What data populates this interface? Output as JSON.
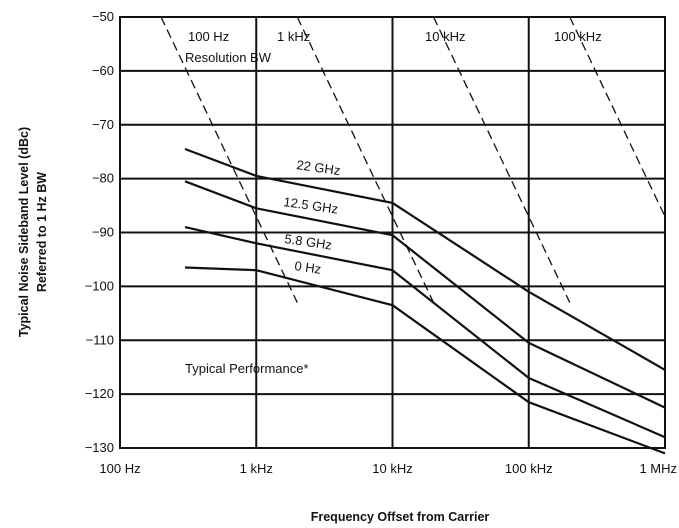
{
  "chart_data": {
    "type": "line",
    "title": "",
    "xlabel": "Frequency Offset from Carrier",
    "ylabel_line1": "Typical Noise Sideband Level (dBc)",
    "ylabel_line2": "Referred to 1 Hz BW",
    "x_scale": "log",
    "xlim": [
      100,
      1000000
    ],
    "ylim": [
      -130,
      -50
    ],
    "x_ticks": [
      {
        "value": 100,
        "label": "100 Hz"
      },
      {
        "value": 1000,
        "label": "1 kHz"
      },
      {
        "value": 10000,
        "label": "10 kHz"
      },
      {
        "value": 100000,
        "label": "100 kHz"
      },
      {
        "value": 1000000,
        "label": "1 MHz"
      }
    ],
    "y_ticks": [
      {
        "value": -50,
        "label": "−50"
      },
      {
        "value": -60,
        "label": "−60"
      },
      {
        "value": -70,
        "label": "−70"
      },
      {
        "value": -80,
        "label": "−80"
      },
      {
        "value": -90,
        "label": "−90"
      },
      {
        "value": -100,
        "label": "−100"
      },
      {
        "value": -110,
        "label": "−110"
      },
      {
        "value": -120,
        "label": "−120"
      },
      {
        "value": -130,
        "label": "−130"
      }
    ],
    "grid": true,
    "series": [
      {
        "name": "22 GHz",
        "x": [
          300,
          1000,
          10000,
          100000,
          1000000
        ],
        "y": [
          -74.5,
          -79.5,
          -84.5,
          -101,
          -115.5
        ]
      },
      {
        "name": "12.5 GHz",
        "x": [
          300,
          1000,
          10000,
          100000,
          1000000
        ],
        "y": [
          -80.5,
          -85.5,
          -90.5,
          -110.5,
          -122.5
        ]
      },
      {
        "name": "5.8 GHz",
        "x": [
          300,
          1000,
          10000,
          100000,
          1000000
        ],
        "y": [
          -89,
          -92,
          -97,
          -117,
          -128
        ]
      },
      {
        "name": "0 Hz",
        "x": [
          300,
          1000,
          10000,
          100000,
          1000000
        ],
        "y": [
          -96.5,
          -97,
          -103.5,
          -121.5,
          -131
        ]
      }
    ],
    "resolution_bw_lines": [
      {
        "label": "100 Hz",
        "x": [
          200,
          2000
        ],
        "y": [
          -50,
          -103
        ]
      },
      {
        "label": "1 kHz",
        "x": [
          2000,
          20000
        ],
        "y": [
          -50,
          -103
        ]
      },
      {
        "label": "10 kHz",
        "x": [
          20000,
          200000
        ],
        "y": [
          -50,
          -103
        ]
      },
      {
        "label": "100 kHz",
        "x": [
          200000,
          2000000
        ],
        "y": [
          -50,
          -103
        ]
      }
    ],
    "annotations": {
      "resolution_bw": "Resolution BW",
      "typical_performance": "Typical Performance*"
    }
  }
}
